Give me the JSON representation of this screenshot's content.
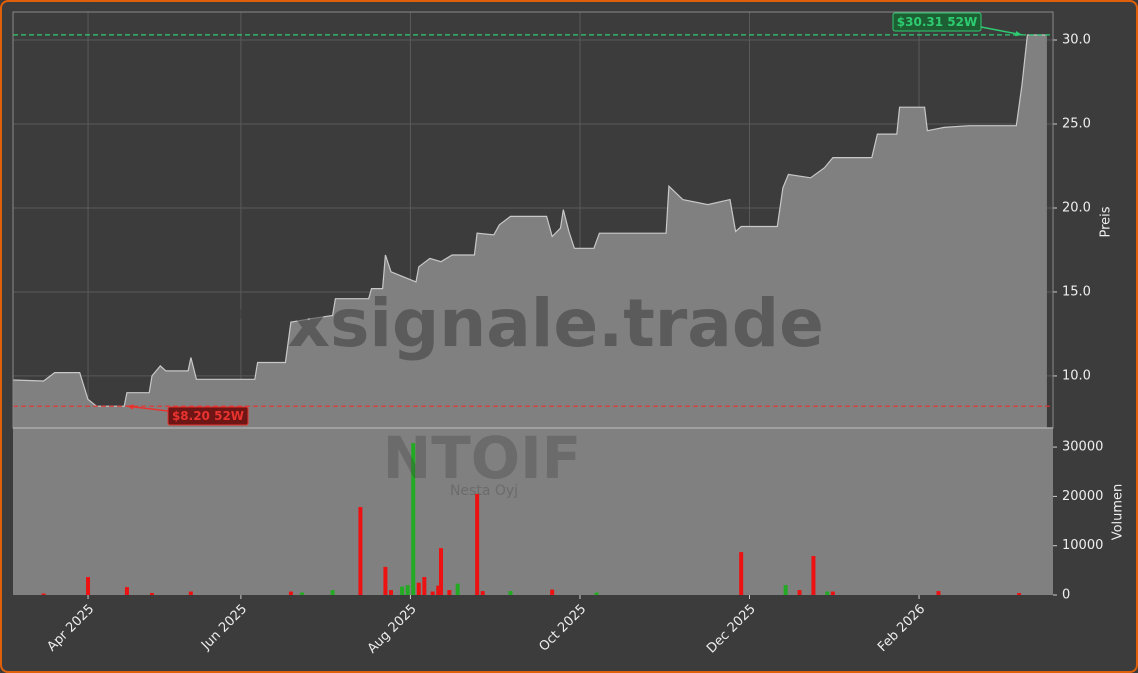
{
  "chart_data": [
    {
      "type": "area",
      "y_label": "Preis",
      "color": "#808080",
      "line_color": "#c8c8c8",
      "watermark": "forexsignale.trade",
      "x": [
        -27,
        -16,
        -12,
        -3,
        0,
        3,
        13,
        14,
        22,
        23,
        26,
        28,
        36,
        37,
        39,
        60,
        61,
        71,
        73,
        80,
        88,
        89,
        101,
        102,
        106,
        107,
        109,
        112,
        118,
        119,
        123,
        127,
        131,
        139,
        140,
        146,
        148,
        152,
        165,
        167,
        170,
        171,
        173,
        175,
        182,
        184,
        208,
        209,
        214,
        223,
        231,
        233,
        235,
        248,
        250,
        252,
        260,
        265,
        268,
        282,
        284,
        291,
        292,
        301,
        302,
        308,
        317,
        334,
        336,
        338,
        345
      ],
      "values": [
        9.76,
        9.7,
        10.2,
        10.2,
        8.6,
        8.2,
        8.2,
        9.0,
        9.0,
        10.0,
        10.6,
        10.3,
        10.3,
        11.1,
        9.8,
        9.8,
        10.8,
        10.8,
        13.2,
        13.4,
        13.6,
        14.6,
        14.6,
        15.2,
        15.2,
        17.2,
        16.2,
        16.0,
        15.6,
        16.5,
        17.0,
        16.8,
        17.2,
        17.2,
        18.5,
        18.4,
        19.0,
        19.5,
        19.5,
        18.3,
        18.8,
        19.9,
        18.6,
        17.6,
        17.6,
        18.5,
        18.5,
        21.3,
        20.5,
        20.2,
        20.5,
        18.6,
        18.9,
        18.9,
        21.2,
        22.0,
        21.8,
        22.4,
        23.0,
        23.0,
        24.4,
        24.4,
        26.0,
        26.0,
        24.6,
        24.8,
        24.9,
        24.9,
        27.3,
        30.3,
        30.3
      ],
      "xlim": [
        -27,
        347.2
      ],
      "ylim": [
        6.9,
        31.67
      ],
      "yticks": [
        {
          "value": 10,
          "label": "10.0"
        },
        {
          "value": 15,
          "label": "15.0"
        },
        {
          "value": 20,
          "label": "20.0"
        },
        {
          "value": 25,
          "label": "25.0"
        },
        {
          "value": 30,
          "label": "30.0"
        }
      ],
      "grid": true,
      "high": {
        "value": 30.31,
        "label": "$30.31 52W",
        "color": "#2ecc71"
      },
      "low": {
        "value": 8.2,
        "label": "$8.20 52W",
        "color": "#e8332f"
      }
    },
    {
      "type": "bar",
      "y_label": "Volumen",
      "symbol": "NTOIF",
      "company": "Nesta Oyj",
      "series": [
        {
          "color": "#ee1111",
          "x": [
            -16,
            0,
            14,
            23,
            37,
            73,
            98,
            107,
            109,
            119,
            121,
            124,
            126,
            127,
            130,
            140,
            142,
            167,
            235,
            256,
            261,
            268,
            306,
            335
          ],
          "values": [
            300,
            3650,
            1600,
            400,
            700,
            700,
            17850,
            5700,
            1000,
            2500,
            3650,
            700,
            1900,
            9500,
            1000,
            20500,
            800,
            1100,
            8700,
            1000,
            7900,
            700,
            800,
            400
          ]
        },
        {
          "color": "#22aa22",
          "x": [
            77,
            88,
            113,
            115,
            117,
            133,
            152,
            183,
            251,
            266
          ],
          "values": [
            500,
            1000,
            1700,
            2000,
            30800,
            2300,
            800,
            500,
            2000,
            700
          ]
        }
      ],
      "xlim": [
        -27,
        347.2
      ],
      "ylim": [
        0,
        33870
      ],
      "yticks": [
        0,
        10000,
        20000,
        30000
      ],
      "xticks": [
        {
          "value": 0,
          "label": "Apr 2025"
        },
        {
          "value": 55,
          "label": "Jun 2025"
        },
        {
          "value": 116,
          "label": "Aug 2025"
        },
        {
          "value": 177,
          "label": "Oct 2025"
        },
        {
          "value": 238,
          "label": "Dec 2025"
        },
        {
          "value": 299,
          "label": "Feb 2026"
        }
      ]
    }
  ]
}
